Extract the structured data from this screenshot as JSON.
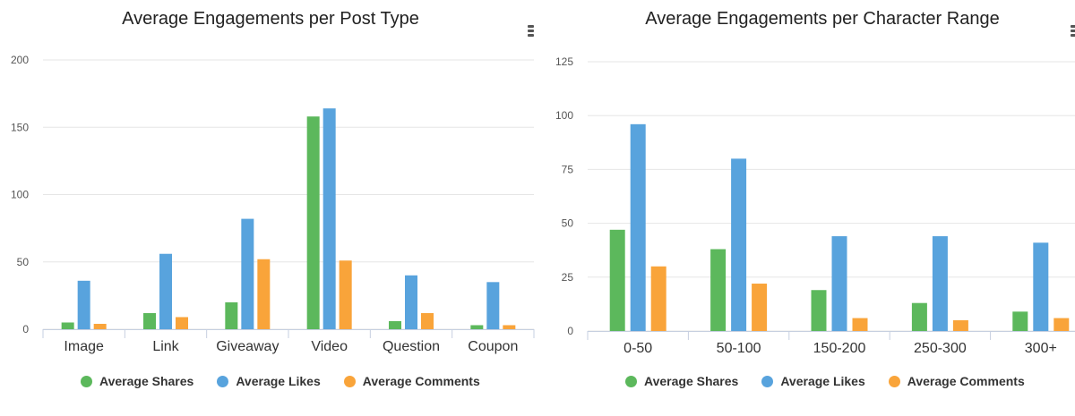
{
  "colors": {
    "shares": "#5cb85c",
    "likes": "#58a3dd",
    "comments": "#f9a43a"
  },
  "menu_icon": "hamburger-menu-icon",
  "chart_data": [
    {
      "type": "bar",
      "title": "Average Engagements per Post Type",
      "categories": [
        "Image",
        "Link",
        "Giveaway",
        "Video",
        "Question",
        "Coupon"
      ],
      "ylim": [
        0,
        200
      ],
      "yticks": [
        0,
        50,
        100,
        150,
        200
      ],
      "grid": true,
      "legend_position": "bottom",
      "series": [
        {
          "name": "Average Shares",
          "values": [
            5,
            12,
            20,
            158,
            6,
            3
          ]
        },
        {
          "name": "Average Likes",
          "values": [
            36,
            56,
            82,
            164,
            40,
            35
          ]
        },
        {
          "name": "Average Comments",
          "values": [
            4,
            9,
            52,
            51,
            12,
            3
          ]
        }
      ]
    },
    {
      "type": "bar",
      "title": "Average Engagements per Character Range",
      "categories": [
        "0-50",
        "50-100",
        "150-200",
        "250-300",
        "300+"
      ],
      "ylim": [
        0,
        125
      ],
      "yticks": [
        0,
        25,
        50,
        75,
        100,
        125
      ],
      "grid": true,
      "legend_position": "bottom",
      "series": [
        {
          "name": "Average Shares",
          "values": [
            47,
            38,
            19,
            13,
            9
          ]
        },
        {
          "name": "Average Likes",
          "values": [
            96,
            80,
            44,
            44,
            41
          ]
        },
        {
          "name": "Average Comments",
          "values": [
            30,
            22,
            6,
            5,
            6
          ]
        }
      ]
    }
  ]
}
